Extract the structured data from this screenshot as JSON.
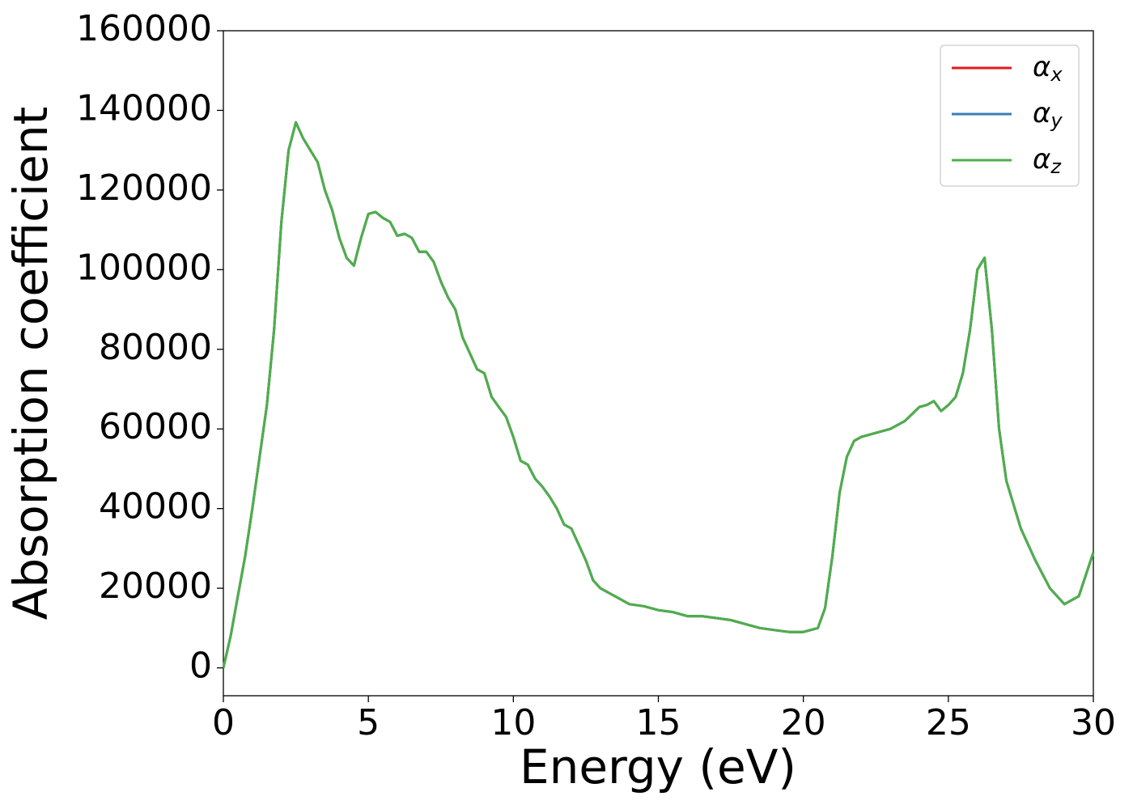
{
  "chart_data": {
    "type": "line",
    "xlabel": "Energy (eV)",
    "ylabel": "Absorption coefficient",
    "x": [
      0,
      0.25,
      0.5,
      0.75,
      1,
      1.25,
      1.5,
      1.75,
      2,
      2.25,
      2.5,
      2.75,
      3,
      3.25,
      3.5,
      3.75,
      4,
      4.25,
      4.5,
      4.75,
      5,
      5.25,
      5.5,
      5.75,
      6,
      6.25,
      6.5,
      6.75,
      7,
      7.25,
      7.5,
      7.75,
      8,
      8.25,
      8.5,
      8.75,
      9,
      9.25,
      9.5,
      9.75,
      10,
      10.25,
      10.5,
      10.75,
      11,
      11.25,
      11.5,
      11.75,
      12,
      12.25,
      12.5,
      12.75,
      13,
      13.5,
      14,
      14.5,
      15,
      15.5,
      16,
      16.5,
      17,
      17.5,
      18,
      18.5,
      19,
      19.5,
      20,
      20.5,
      20.75,
      21,
      21.25,
      21.5,
      21.75,
      22,
      22.5,
      23,
      23.5,
      24,
      24.25,
      24.5,
      24.75,
      25,
      25.25,
      25.5,
      25.75,
      26,
      26.25,
      26.5,
      26.75,
      27,
      27.5,
      28,
      28.5,
      29,
      29.5,
      30
    ],
    "series": [
      {
        "name": "αx",
        "color": "#e41a1c",
        "values": [
          0,
          8000,
          18000,
          28000,
          40000,
          53000,
          66000,
          85000,
          112000,
          130000,
          137000,
          133000,
          130000,
          127000,
          120000,
          115000,
          108000,
          103000,
          101000,
          108000,
          114000,
          114500,
          113000,
          112000,
          108500,
          109000,
          108000,
          104500,
          104500,
          102000,
          97000,
          93000,
          90000,
          83000,
          79000,
          75000,
          74000,
          68000,
          65500,
          63000,
          58000,
          52000,
          51000,
          47500,
          45500,
          43000,
          40000,
          36000,
          35000,
          31000,
          27000,
          22000,
          20000,
          18000,
          16000,
          15500,
          14500,
          14000,
          13000,
          13000,
          12500,
          12000,
          11000,
          10000,
          9500,
          9000,
          9000,
          10000,
          15000,
          28000,
          44000,
          53000,
          57000,
          58000,
          59000,
          60000,
          62000,
          65500,
          66000,
          67000,
          64500,
          66000,
          68000,
          74000,
          85000,
          100000,
          103000,
          85000,
          60000,
          47000,
          35000,
          27000,
          20000,
          16000,
          18000,
          29000
        ]
      },
      {
        "name": "αy",
        "color": "#377eb8",
        "values": [
          0,
          8000,
          18000,
          28000,
          40000,
          53000,
          66000,
          85000,
          112000,
          130000,
          137000,
          133000,
          130000,
          127000,
          120000,
          115000,
          108000,
          103000,
          101000,
          108000,
          114000,
          114500,
          113000,
          112000,
          108500,
          109000,
          108000,
          104500,
          104500,
          102000,
          97000,
          93000,
          90000,
          83000,
          79000,
          75000,
          74000,
          68000,
          65500,
          63000,
          58000,
          52000,
          51000,
          47500,
          45500,
          43000,
          40000,
          36000,
          35000,
          31000,
          27000,
          22000,
          20000,
          18000,
          16000,
          15500,
          14500,
          14000,
          13000,
          13000,
          12500,
          12000,
          11000,
          10000,
          9500,
          9000,
          9000,
          10000,
          15000,
          28000,
          44000,
          53000,
          57000,
          58000,
          59000,
          60000,
          62000,
          65500,
          66000,
          67000,
          64500,
          66000,
          68000,
          74000,
          85000,
          100000,
          103000,
          85000,
          60000,
          47000,
          35000,
          27000,
          20000,
          16000,
          18000,
          29000
        ]
      },
      {
        "name": "αz",
        "color": "#4daf4a",
        "values": [
          0,
          8000,
          18000,
          28000,
          40000,
          53000,
          66000,
          85000,
          112000,
          130000,
          137000,
          133000,
          130000,
          127000,
          120000,
          115000,
          108000,
          103000,
          101000,
          108000,
          114000,
          114500,
          113000,
          112000,
          108500,
          109000,
          108000,
          104500,
          104500,
          102000,
          97000,
          93000,
          90000,
          83000,
          79000,
          75000,
          74000,
          68000,
          65500,
          63000,
          58000,
          52000,
          51000,
          47500,
          45500,
          43000,
          40000,
          36000,
          35000,
          31000,
          27000,
          22000,
          20000,
          18000,
          16000,
          15500,
          14500,
          14000,
          13000,
          13000,
          12500,
          12000,
          11000,
          10000,
          9500,
          9000,
          9000,
          10000,
          15000,
          28000,
          44000,
          53000,
          57000,
          58000,
          59000,
          60000,
          62000,
          65500,
          66000,
          67000,
          64500,
          66000,
          68000,
          74000,
          85000,
          100000,
          103000,
          85000,
          60000,
          47000,
          35000,
          27000,
          20000,
          16000,
          18000,
          29000
        ]
      }
    ],
    "xlim": [
      0,
      30
    ],
    "xticks": [
      0,
      5,
      10,
      15,
      20,
      25,
      30
    ],
    "ylim": [
      -7000,
      160000
    ],
    "yticks": [
      0,
      20000,
      40000,
      60000,
      80000,
      100000,
      120000,
      140000,
      160000
    ],
    "grid": false,
    "legend": "upper right"
  }
}
